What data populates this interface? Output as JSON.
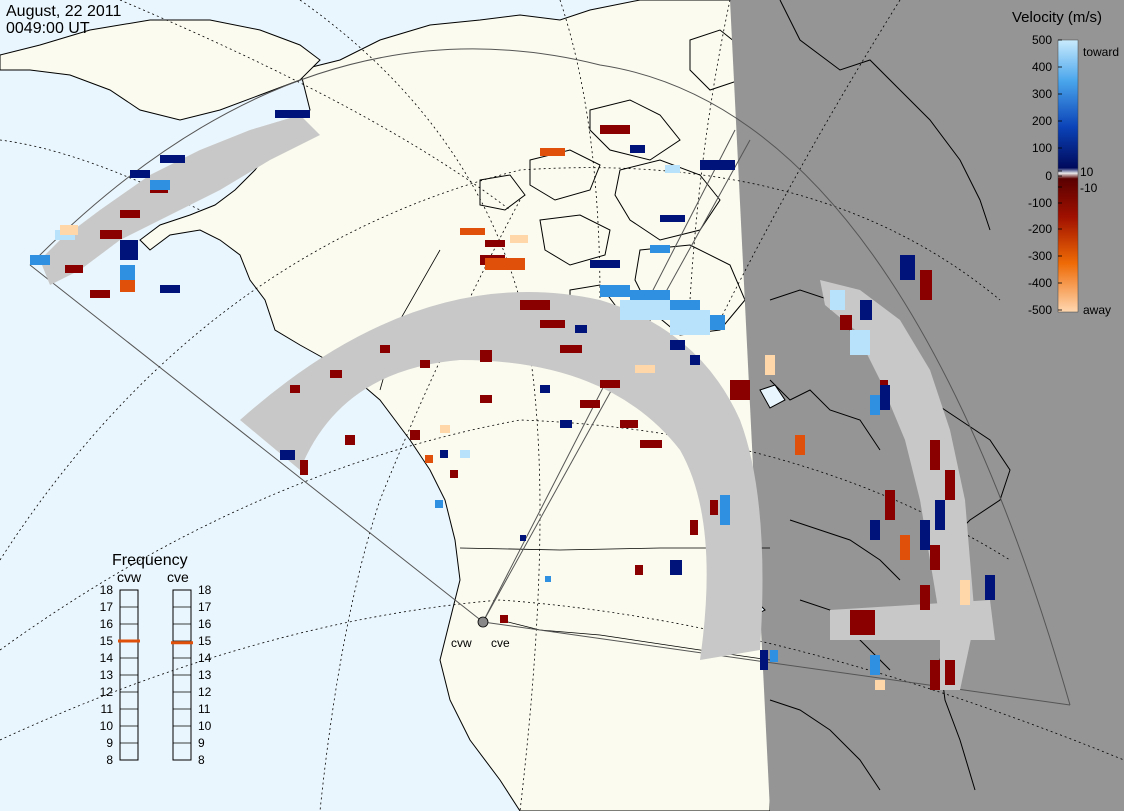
{
  "header": {
    "date": "August, 22 2011",
    "time": "0049:00 UT"
  },
  "colorbar": {
    "title": "Velocity (m/s)",
    "tick_labels": [
      "500",
      "400",
      "300",
      "200",
      "100",
      "10",
      "0",
      "-10",
      "-100",
      "-200",
      "-300",
      "-400",
      "-500"
    ],
    "toward_label": "toward",
    "away_label": "away",
    "colors": {
      "toward_light": "#b8e2fb",
      "toward_mid": "#2f8fe0",
      "toward_dark": "#00137a",
      "away_dark": "#8a0000",
      "away_mid": "#e0500a",
      "away_light": "#ffd7a8",
      "ground_scatter": "#c8c8c8"
    }
  },
  "frequency_panel": {
    "title": "Frequency",
    "radar_left": "cvw",
    "radar_right": "cve",
    "scale": [
      "18",
      "17",
      "16",
      "15",
      "14",
      "13",
      "12",
      "11",
      "10",
      "9",
      "8"
    ],
    "cvw_frequency": 15.0,
    "cve_frequency": 14.9
  },
  "radar_sites": {
    "west": "cvw",
    "east": "cve"
  },
  "map_colors": {
    "ocean": "#eaf6fd",
    "land": "#fbfbef",
    "night": "#959595",
    "coast": "#000000",
    "grid": "#000000"
  }
}
